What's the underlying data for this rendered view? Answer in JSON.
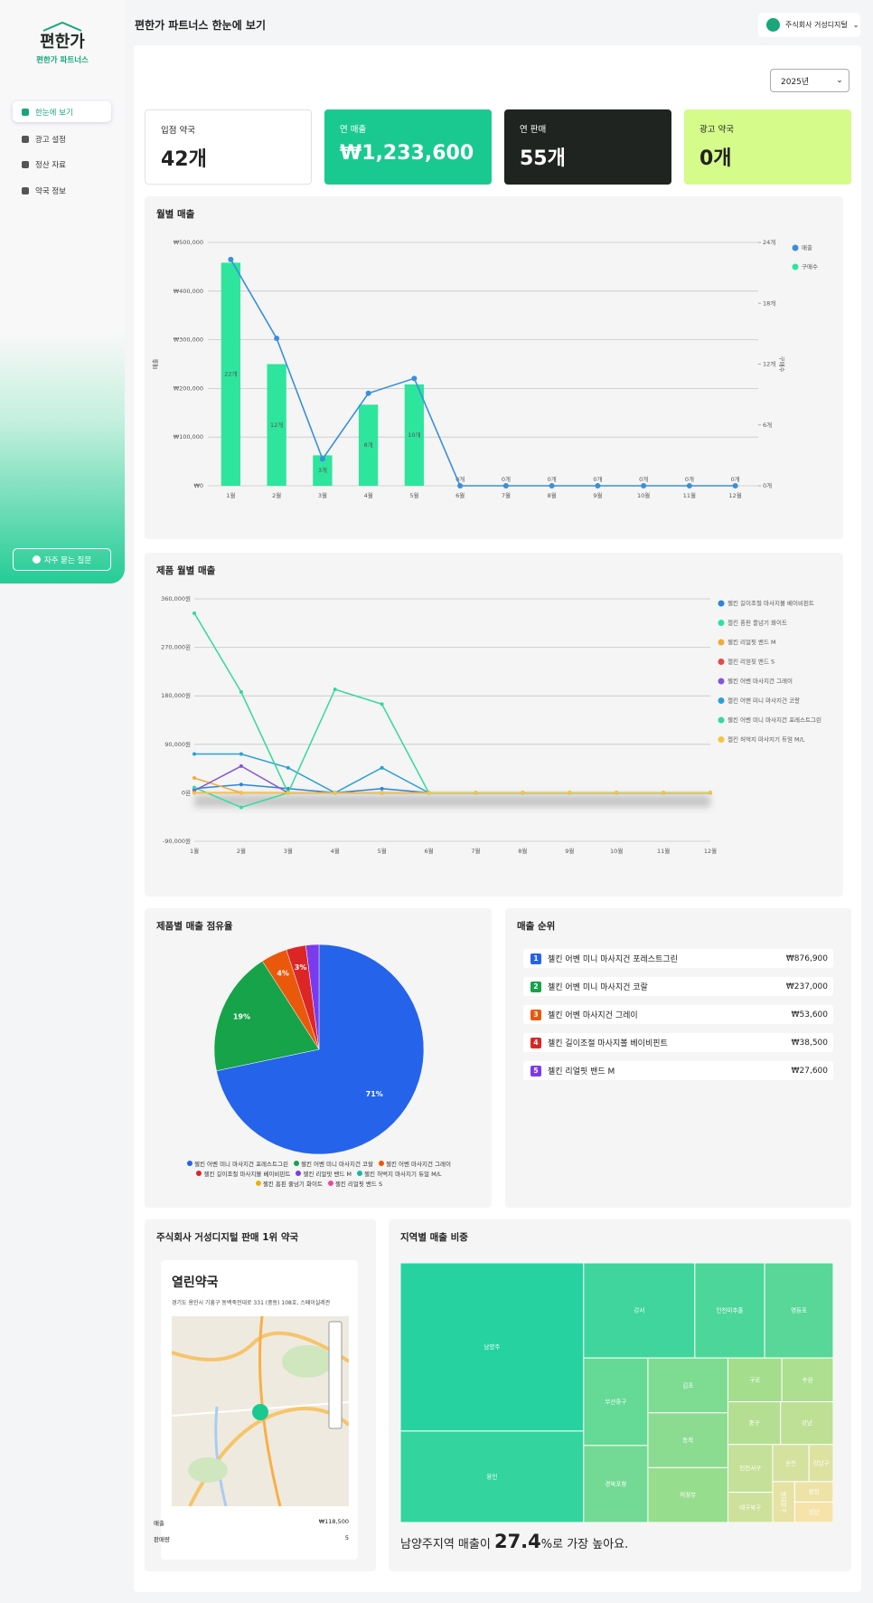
{
  "sidebar": {
    "logo": "편한가",
    "brand": "편한가 파트너스",
    "nav": [
      "한눈에 보기",
      "광고 설정",
      "정산 자료",
      "약국 정보"
    ],
    "faq": "자주 묻는 질문"
  },
  "header": {
    "title": "편한가 파트너스 한눈에 보기",
    "user": "주식회사 거성디지털",
    "year": "2025년"
  },
  "stats": [
    {
      "label": "입점 약국",
      "value": "42개"
    },
    {
      "label": "연 매출",
      "value": "₩1,233,600"
    },
    {
      "label": "연 판매",
      "value": "55개"
    },
    {
      "label": "광고 약국",
      "value": "0개"
    }
  ],
  "chart_data": [
    {
      "type": "combo",
      "title": "월별 매출",
      "ylabel": "매출",
      "y2label": "구매수",
      "categories": [
        "1월",
        "2월",
        "3월",
        "4월",
        "5월",
        "6월",
        "7월",
        "8월",
        "9월",
        "10월",
        "11월",
        "12월"
      ],
      "series": [
        {
          "name": "매출",
          "color": "#3a8fdb",
          "kind": "line",
          "values": [
            465000,
            303000,
            55000,
            190000,
            220600,
            0,
            0,
            0,
            0,
            0,
            0,
            0
          ]
        },
        {
          "name": "구매수",
          "color": "#2ee59d",
          "kind": "bar",
          "axis": "y2",
          "values": [
            22,
            12,
            3,
            8,
            10,
            0,
            0,
            0,
            0,
            0,
            0,
            0
          ],
          "value_labels": [
            "22개",
            "12개",
            "3개",
            "8개",
            "10개",
            "0개",
            "0개",
            "0개",
            "0개",
            "0개",
            "0개",
            "0개"
          ]
        }
      ],
      "ylim": [
        0,
        500000
      ],
      "yticks": [
        {
          "value": 0,
          "label": "₩0"
        },
        {
          "value": 100000,
          "label": "₩100,000"
        },
        {
          "value": 200000,
          "label": "₩200,000"
        },
        {
          "value": 300000,
          "label": "₩300,000"
        },
        {
          "value": 400000,
          "label": "₩400,000"
        },
        {
          "value": 500000,
          "label": "₩500,000"
        }
      ],
      "y2lim": [
        0,
        24
      ],
      "y2ticks": [
        {
          "value": 0,
          "label": "0개"
        },
        {
          "value": 6,
          "label": "6개"
        },
        {
          "value": 12,
          "label": "12개"
        },
        {
          "value": 18,
          "label": "18개"
        },
        {
          "value": 24,
          "label": "24개"
        }
      ],
      "grid": true,
      "legend": "right"
    },
    {
      "type": "line",
      "title": "제품 월별 매출",
      "categories": [
        "1월",
        "2월",
        "3월",
        "4월",
        "5월",
        "6월",
        "7월",
        "8월",
        "9월",
        "10월",
        "11월",
        "12월"
      ],
      "series": [
        {
          "name": "젤킨 길이조절 마사지볼 베이비핀트",
          "color": "#2b86d9",
          "values": [
            7700,
            15400,
            7700,
            0,
            7700,
            0,
            0,
            0,
            0,
            0,
            0,
            0
          ]
        },
        {
          "name": "젤킨 홈핀 줄넘기 화이트",
          "color": "#2ee0a0",
          "values": [
            10000,
            -27000,
            0,
            0,
            0,
            0,
            0,
            0,
            0,
            0,
            0,
            0
          ]
        },
        {
          "name": "젤킨 리얼핏 밴드 M",
          "color": "#f2a93b",
          "values": [
            27600,
            0,
            0,
            0,
            0,
            0,
            0,
            0,
            0,
            0,
            0,
            0
          ]
        },
        {
          "name": "젤킨 리얼핏 밴드 S",
          "color": "#e8474a",
          "values": [
            0,
            0,
            0,
            0,
            0,
            0,
            0,
            0,
            0,
            0,
            0,
            0
          ]
        },
        {
          "name": "젤킨 어벤 마사지건 그레이",
          "color": "#8457d6",
          "values": [
            4000,
            49600,
            0,
            0,
            0,
            0,
            0,
            0,
            0,
            0,
            0,
            0
          ]
        },
        {
          "name": "젤킨 어벤 미니 마사지건 코랄",
          "color": "#2aa0d8",
          "values": [
            72000,
            72000,
            46500,
            0,
            46500,
            0,
            0,
            0,
            0,
            0,
            0,
            0
          ]
        },
        {
          "name": "젤킨 어벤 미니 마사지건 포레스트그린",
          "color": "#34d99b",
          "values": [
            333400,
            187000,
            0,
            192000,
            164500,
            0,
            0,
            0,
            0,
            0,
            0,
            0
          ]
        },
        {
          "name": "젤킨 허벅지 마사지기 듀얼 M/L",
          "color": "#f4c542",
          "values": [
            0,
            0,
            0,
            0,
            0,
            0,
            0,
            0,
            0,
            0,
            0,
            0
          ]
        }
      ],
      "ylim": [
        -90000,
        360000
      ],
      "yticks": [
        {
          "value": -90000,
          "label": "-90,000원"
        },
        {
          "value": 0,
          "label": "0원"
        },
        {
          "value": 90000,
          "label": "90,000원"
        },
        {
          "value": 180000,
          "label": "180,000원"
        },
        {
          "value": 270000,
          "label": "270,000원"
        },
        {
          "value": 360000,
          "label": "360,000원"
        }
      ],
      "grid": true,
      "legend": "right"
    },
    {
      "type": "pie",
      "title": "제품별 매출 점유율",
      "categories": [
        "젤킨 어벤 미니 마사지건 포레스트그린",
        "젤킨 어벤 미니 마사지건 코랄",
        "젤킨 어벤 마사지건 그레이",
        "젤킨 길이조절 마사지볼 베이비핀트",
        "젤킨 리얼핏 밴드 M",
        "젤킨 허벅지 마사지기 듀얼 M/L",
        "젤킨 홈핀 줄넘기 화이트",
        "젤킨 리얼핏 밴드 S"
      ],
      "values": [
        71,
        19,
        4,
        3,
        2,
        0,
        0,
        0
      ],
      "value_labels": [
        "71%",
        "19%",
        "4%",
        "3%",
        null,
        null,
        null,
        null
      ],
      "colors": [
        "#2563eb",
        "#16a34a",
        "#ea580c",
        "#dc2626",
        "#7c3aed",
        "#14b8a6",
        "#eab308",
        "#ec4899"
      ],
      "legend": "bottom"
    },
    {
      "type": "treemap",
      "title": "지역별 매출 비중",
      "categories": [
        "남양주",
        "용인",
        "강서",
        "인천미추홀",
        "영등포",
        "부산중구",
        "경북포항",
        "김포",
        "동작",
        "의정부",
        "구로",
        "수원",
        "중구",
        "강남",
        "인천서구",
        "대구북구",
        "순천",
        "강남구",
        "동대문구",
        "광진",
        "성남"
      ],
      "values": [
        27.4,
        14.9,
        9.4,
        5.9,
        5.8,
        5.0,
        4.4,
        3.9,
        3.9,
        3.9,
        2.1,
        2.0,
        2.0,
        2.0,
        1.9,
        1.2,
        1.2,
        0.8,
        0.8,
        0.7,
        0.7
      ],
      "color_range": [
        "#26d3a0",
        "#a4de8c",
        "#f6e3aa"
      ]
    }
  ],
  "ranking": {
    "title": "매출 순위",
    "ranks": [
      1,
      2,
      3,
      4,
      5
    ],
    "amounts": [
      "₩876,900",
      "₩237,000",
      "₩53,600",
      "₩38,500",
      "₩27,600"
    ]
  },
  "pharmacy": {
    "title": "주식회사 거성디지털 판매 1위 약국",
    "name": "열린약국",
    "address": "경기도 용인시 기흥구 동백죽전대로 331 (중동) 108호, 스페이실레관",
    "rows": [
      [
        "매출",
        "₩118,500"
      ],
      [
        "판매량",
        "5"
      ]
    ]
  },
  "region_caption": {
    "prefix": "남양주지역 매출이",
    "suffix": "%로 가장 높아요."
  }
}
